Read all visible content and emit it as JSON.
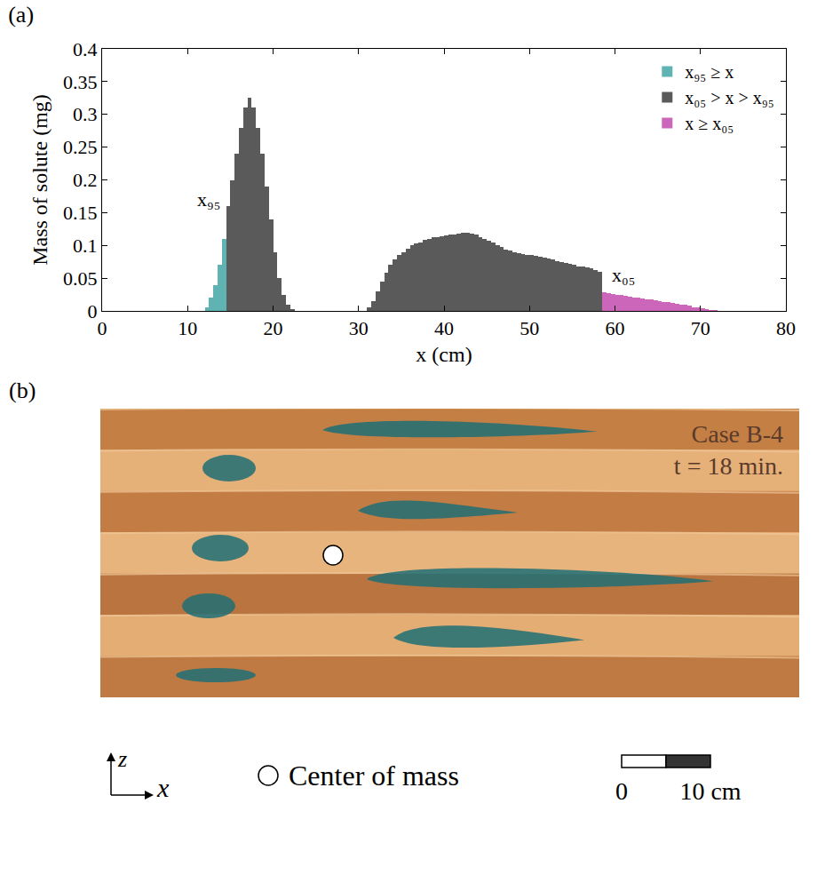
{
  "chart_data": {
    "type": "bar",
    "title": "(a)",
    "x_label": "x (cm)",
    "y_label": "Mass of solute (mg)",
    "xlim": [
      0,
      80
    ],
    "xticks": [
      0,
      10,
      20,
      30,
      40,
      50,
      60,
      70,
      80
    ],
    "ylim": [
      0,
      0.4
    ],
    "yticks": [
      0,
      0.05,
      0.1,
      0.15,
      0.2,
      0.25,
      0.3,
      0.35,
      0.4
    ],
    "grid": false,
    "legend": "top right",
    "series": [
      {
        "name": "x₉₅ ≥ x",
        "color": "#5fb3b3",
        "bins": [
          12,
          12.5,
          13,
          13.5,
          14,
          14.5
        ],
        "values": [
          0.005,
          0.02,
          0.04,
          0.07,
          0.11
        ]
      },
      {
        "name": "x₀₅ > x > x₉₅",
        "color": "#5a5a5a",
        "bins": [
          14.5,
          15,
          15.5,
          16,
          16.5,
          17,
          17.5,
          18,
          18.5,
          19,
          19.5,
          20,
          20.5,
          21,
          21.5,
          22,
          22.5,
          23,
          23.5,
          24,
          24.5,
          25,
          25.5,
          26,
          26.5,
          27,
          27.5,
          28,
          28.5,
          29,
          29.5,
          30,
          30.5,
          31,
          31.5,
          32,
          32.5,
          33,
          33.5,
          34,
          34.5,
          35,
          35.5,
          36,
          36.5,
          37,
          37.5,
          38,
          38.5,
          39,
          39.5,
          40,
          40.5,
          41,
          41.5,
          42,
          42.5,
          43,
          43.5,
          44,
          44.5,
          45,
          45.5,
          46,
          46.5,
          47,
          47.5,
          48,
          48.5,
          49,
          49.5,
          50,
          50.5,
          51,
          51.5,
          52,
          52.5,
          53,
          53.5,
          54,
          54.5,
          55,
          55.5,
          56,
          56.5,
          57,
          57.5,
          58,
          58.5
        ],
        "values": [
          0.16,
          0.2,
          0.24,
          0.28,
          0.31,
          0.325,
          0.31,
          0.28,
          0.24,
          0.19,
          0.14,
          0.09,
          0.05,
          0.025,
          0.01,
          0.003,
          0,
          0,
          0,
          0,
          0,
          0,
          0,
          0,
          0,
          0,
          0,
          0,
          0,
          0,
          0,
          0,
          0,
          0.005,
          0.015,
          0.03,
          0.045,
          0.058,
          0.07,
          0.078,
          0.085,
          0.09,
          0.095,
          0.1,
          0.103,
          0.105,
          0.108,
          0.11,
          0.112,
          0.113,
          0.114,
          0.115,
          0.116,
          0.117,
          0.118,
          0.119,
          0.12,
          0.118,
          0.116,
          0.113,
          0.11,
          0.107,
          0.104,
          0.1,
          0.097,
          0.094,
          0.092,
          0.09,
          0.088,
          0.087,
          0.086,
          0.085,
          0.084,
          0.083,
          0.082,
          0.08,
          0.078,
          0.076,
          0.075,
          0.073,
          0.072,
          0.07,
          0.068,
          0.068,
          0.066,
          0.065,
          0.063,
          0.06
        ]
      },
      {
        "name": "x ≥ x₀₅",
        "color": "#cc66bb",
        "bins": [
          58.5,
          59,
          59.5,
          60,
          60.5,
          61,
          61.5,
          62,
          62.5,
          63,
          63.5,
          64,
          64.5,
          65,
          65.5,
          66,
          66.5,
          67,
          67.5,
          68,
          68.5,
          69,
          69.5,
          70,
          70.5,
          71,
          71.5,
          72
        ],
        "values": [
          0.028,
          0.027,
          0.026,
          0.025,
          0.024,
          0.023,
          0.022,
          0.021,
          0.02,
          0.019,
          0.018,
          0.017,
          0.016,
          0.015,
          0.014,
          0.013,
          0.012,
          0.011,
          0.01,
          0.009,
          0.008,
          0.006,
          0.005,
          0.004,
          0.003,
          0.002,
          0.001
        ]
      }
    ],
    "annotations": [
      {
        "text": "x₉₅",
        "x": 12.5,
        "y": 0.15
      },
      {
        "text": "x₀₅",
        "x": 61,
        "y": 0.035
      }
    ]
  },
  "photo": {
    "title": "(b)",
    "case_label": "Case B-4",
    "time_label": "t = 18 min.",
    "marker_legend": "Center of mass",
    "scale_bar": [
      "0",
      "10 cm"
    ],
    "axis_labels": {
      "vertical": "z",
      "horizontal": "x"
    }
  }
}
